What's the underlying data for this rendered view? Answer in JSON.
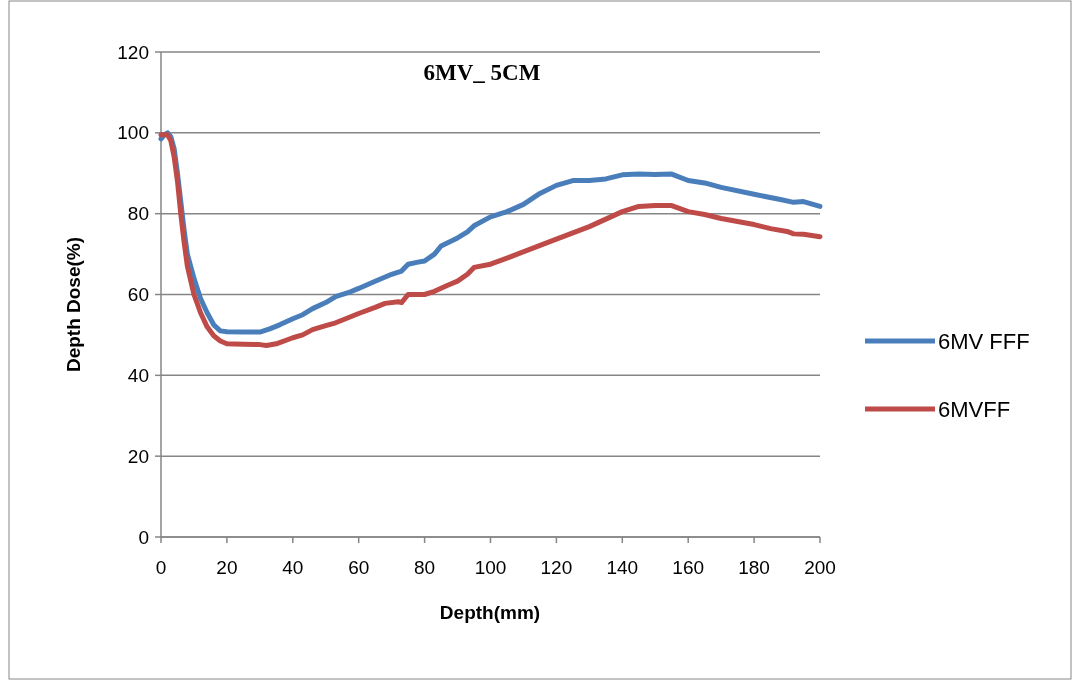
{
  "chart_data": {
    "type": "line",
    "title": "6MV_ 5CM",
    "xlabel": "Depth(mm)",
    "ylabel": "Depth Dose(%)",
    "xlim": [
      0,
      200
    ],
    "xticks": [
      0,
      20,
      40,
      60,
      80,
      100,
      120,
      140,
      160,
      180,
      200
    ],
    "ylim": [
      0,
      120
    ],
    "yticks": [
      0,
      20,
      40,
      60,
      80,
      100,
      120
    ],
    "grid": "y",
    "legend": "right",
    "marker": "none",
    "line_style": "solid",
    "series": [
      {
        "name": "6MV FFF",
        "color": "#4a7ebb",
        "x": [
          0,
          1,
          2,
          3,
          4,
          5,
          6,
          7,
          8,
          10,
          12,
          14,
          16,
          18,
          20,
          25,
          30,
          33,
          36,
          40,
          43,
          46,
          50,
          53,
          57,
          60,
          65,
          70,
          73,
          75,
          78,
          80,
          83,
          85,
          90,
          93,
          95,
          100,
          105,
          110,
          115,
          120,
          125,
          130,
          135,
          140,
          145,
          150,
          155,
          160,
          165,
          170,
          180,
          188,
          192,
          195,
          200
        ],
        "values": [
          98.5,
          99.5,
          100,
          99,
          96,
          90,
          83,
          76,
          70,
          64,
          59,
          55.5,
          52.5,
          51,
          50.8,
          50.7,
          50.7,
          51.5,
          52.5,
          54,
          55,
          56.5,
          58,
          59.5,
          60.5,
          61.5,
          63.3,
          65,
          65.8,
          67.5,
          68,
          68.3,
          70,
          72,
          74,
          75.5,
          77,
          79.2,
          80.5,
          82.3,
          85,
          87,
          88.2,
          88.2,
          88.6,
          89.6,
          89.8,
          89.7,
          89.8,
          88.2,
          87.6,
          86.5,
          84.8,
          83.5,
          82.8,
          83,
          81.8
        ]
      },
      {
        "name": "6MVFF",
        "color": "#be4b48",
        "x": [
          0,
          2,
          3,
          4,
          5,
          6,
          7,
          8,
          10,
          12,
          14,
          16,
          18,
          20,
          25,
          30,
          32,
          35,
          40,
          43,
          46,
          50,
          53,
          57,
          60,
          65,
          68,
          72,
          73,
          75,
          80,
          83,
          87,
          90,
          93,
          95,
          100,
          105,
          120,
          130,
          140,
          145,
          150,
          155,
          160,
          165,
          170,
          180,
          185,
          190,
          192,
          195,
          200
        ],
        "values": [
          99.5,
          99.5,
          98,
          94,
          88,
          80,
          73,
          67,
          60,
          55.5,
          52,
          49.8,
          48.5,
          47.8,
          47.7,
          47.6,
          47.4,
          47.8,
          49.3,
          50,
          51.3,
          52.3,
          53,
          54.3,
          55.3,
          56.8,
          57.8,
          58.2,
          58,
          60,
          60,
          60.8,
          62.3,
          63.3,
          65,
          66.7,
          67.5,
          69,
          73.7,
          76.8,
          80.5,
          81.8,
          82,
          82,
          80.5,
          79.8,
          78.8,
          77.3,
          76.3,
          75.6,
          75,
          74.9,
          74.3
        ]
      }
    ]
  }
}
